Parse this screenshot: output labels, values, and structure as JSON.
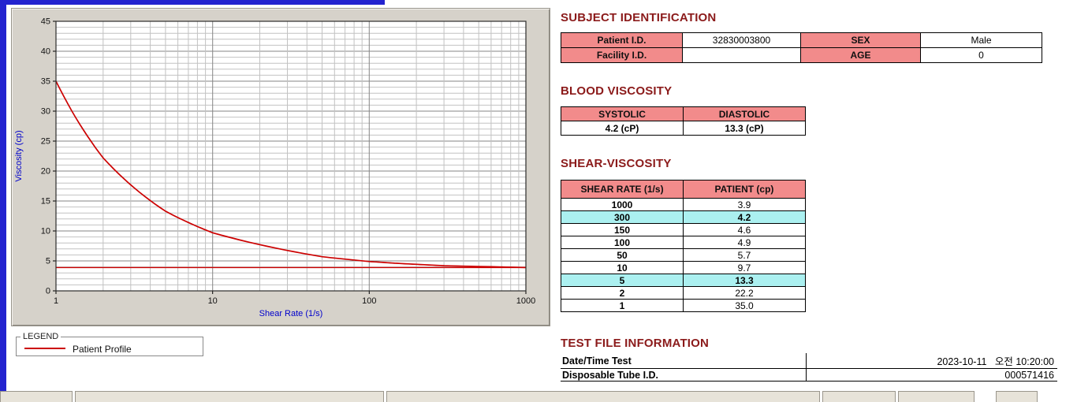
{
  "colors": {
    "accent_pink": "#F28B8B",
    "highlight_cyan": "#ABF0F0",
    "section_title_maroon": "#8B1A1A",
    "series_red": "#CC0000",
    "axis_label_blue": "#0000CC",
    "panel_gray": "#D6D2CA",
    "edge_blue": "#2323CF"
  },
  "chart_data": {
    "type": "line",
    "title": "",
    "xlabel": "Shear Rate (1/s)",
    "ylabel": "Viscosity (cp)",
    "xscale": "log",
    "xlim": [
      1,
      1000
    ],
    "ylim": [
      0,
      45
    ],
    "x_major_ticks": [
      1,
      10,
      100,
      1000
    ],
    "y_major_ticks": [
      0,
      5,
      10,
      15,
      20,
      25,
      30,
      35,
      40,
      45
    ],
    "grid": true,
    "legend_position": "below-left",
    "series": [
      {
        "name": "Patient Profile",
        "x": [
          1,
          2,
          5,
          10,
          50,
          100,
          150,
          300,
          1000
        ],
        "values": [
          35.0,
          22.2,
          13.3,
          9.7,
          5.7,
          4.9,
          4.6,
          4.2,
          3.9
        ],
        "color": "#CC0000"
      }
    ],
    "reference_line_y": 3.9
  },
  "legend": {
    "box_label": "LEGEND",
    "series_label": "Patient Profile"
  },
  "subject_identification": {
    "title": "SUBJECT IDENTIFICATION",
    "patient_id_label": "Patient I.D.",
    "patient_id_value": "32830003800",
    "sex_label": "SEX",
    "sex_value": "Male",
    "facility_id_label": "Facility I.D.",
    "facility_id_value": "",
    "age_label": "AGE",
    "age_value": "0"
  },
  "blood_viscosity": {
    "title": "BLOOD VISCOSITY",
    "systolic_label": "SYSTOLIC",
    "diastolic_label": "DIASTOLIC",
    "systolic_value": "4.2 (cP)",
    "diastolic_value": "13.3 (cP)"
  },
  "shear_viscosity": {
    "title": "SHEAR-VISCOSITY",
    "col1_header": "SHEAR RATE (1/s)",
    "col2_header": "PATIENT (cp)",
    "rows": [
      {
        "rate": "1000",
        "value": "3.9",
        "highlighted": false
      },
      {
        "rate": "300",
        "value": "4.2",
        "highlighted": true
      },
      {
        "rate": "150",
        "value": "4.6",
        "highlighted": false
      },
      {
        "rate": "100",
        "value": "4.9",
        "highlighted": false
      },
      {
        "rate": "50",
        "value": "5.7",
        "highlighted": false
      },
      {
        "rate": "10",
        "value": "9.7",
        "highlighted": false
      },
      {
        "rate": "5",
        "value": "13.3",
        "highlighted": true
      },
      {
        "rate": "2",
        "value": "22.2",
        "highlighted": false
      },
      {
        "rate": "1",
        "value": "35.0",
        "highlighted": false
      }
    ]
  },
  "test_file_information": {
    "title": "TEST FILE INFORMATION",
    "date_label": "Date/Time Test",
    "date_value": "2023-10-11   오전 10:20:00",
    "tube_label": "Disposable Tube I.D.",
    "tube_value": "000571416"
  }
}
